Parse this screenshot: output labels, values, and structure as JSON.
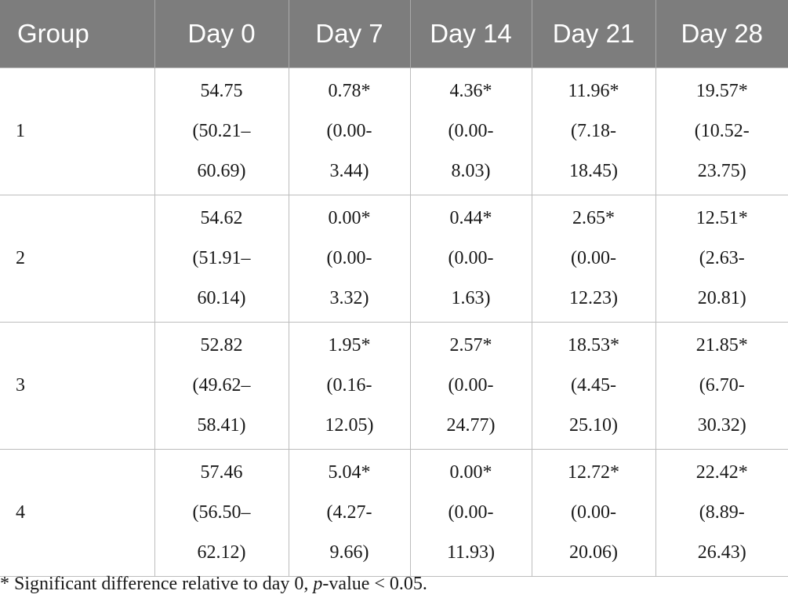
{
  "table": {
    "headers": [
      "Group",
      "Day 0",
      "Day 7",
      "Day 14",
      "Day 21",
      "Day 28"
    ],
    "rows": [
      {
        "group": "1",
        "cells": [
          [
            "54.75",
            "(50.21–",
            "60.69)"
          ],
          [
            "0.78*",
            "(0.00-",
            "3.44)"
          ],
          [
            "4.36*",
            "(0.00-",
            "8.03)"
          ],
          [
            "11.96*",
            "(7.18-",
            "18.45)"
          ],
          [
            "19.57*",
            "(10.52-",
            "23.75)"
          ]
        ]
      },
      {
        "group": "2",
        "cells": [
          [
            "54.62",
            "(51.91–",
            "60.14)"
          ],
          [
            "0.00*",
            "(0.00-",
            "3.32)"
          ],
          [
            "0.44*",
            "(0.00-",
            "1.63)"
          ],
          [
            "2.65*",
            "(0.00-",
            "12.23)"
          ],
          [
            "12.51*",
            "(2.63-",
            "20.81)"
          ]
        ]
      },
      {
        "group": "3",
        "cells": [
          [
            "52.82",
            "(49.62–",
            "58.41)"
          ],
          [
            "1.95*",
            "(0.16-",
            "12.05)"
          ],
          [
            "2.57*",
            "(0.00-",
            "24.77)"
          ],
          [
            "18.53*",
            "(4.45-",
            "25.10)"
          ],
          [
            "21.85*",
            "(6.70-",
            "30.32)"
          ]
        ]
      },
      {
        "group": "4",
        "cells": [
          [
            "57.46",
            "(56.50–",
            "62.12)"
          ],
          [
            "5.04*",
            "(4.27-",
            "9.66)"
          ],
          [
            "0.00*",
            "(0.00-",
            "11.93)"
          ],
          [
            "12.72*",
            "(0.00-",
            "20.06)"
          ],
          [
            "22.42*",
            "(8.89-",
            "26.43)"
          ]
        ]
      }
    ]
  },
  "footnote": {
    "prefix": "* Significant difference relative to day 0, ",
    "italic": "p",
    "suffix": "-value < 0.05."
  },
  "colors": {
    "header_background": "#7d7d7d",
    "header_text": "#ffffff",
    "grid_lines": "#bdbdbd"
  }
}
